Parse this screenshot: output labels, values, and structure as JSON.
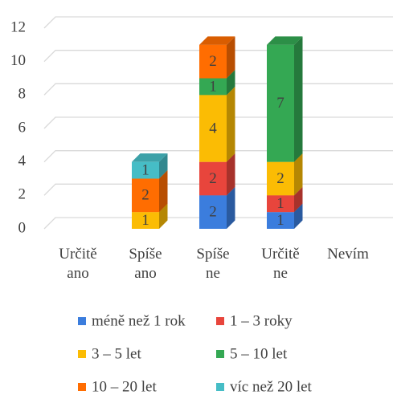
{
  "chart_data": {
    "type": "bar3d_stacked",
    "categories": [
      "Určitě ano",
      "Spíše ano",
      "Spíše ne",
      "Určitě ne",
      "Nevím"
    ],
    "series": [
      {
        "name": "méně než 1 rok",
        "color": "#3b7ddd",
        "values": [
          0,
          0,
          2,
          1,
          0
        ]
      },
      {
        "name": "1 – 3 roky",
        "color": "#e8453c",
        "values": [
          0,
          0,
          2,
          1,
          0
        ]
      },
      {
        "name": "3 – 5 let",
        "color": "#fbbc04",
        "values": [
          0,
          1,
          4,
          2,
          0
        ]
      },
      {
        "name": "5 – 10 let",
        "color": "#34a853",
        "values": [
          0,
          0,
          1,
          7,
          0
        ]
      },
      {
        "name": "10 – 20 let",
        "color": "#ff6d01",
        "values": [
          0,
          2,
          2,
          0,
          0
        ]
      },
      {
        "name": "víc než 20 let",
        "color": "#46bdc6",
        "values": [
          0,
          1,
          0,
          0,
          0
        ]
      }
    ],
    "ylim": [
      0,
      12
    ],
    "yticks": [
      0,
      2,
      4,
      6,
      8,
      10,
      12
    ],
    "grid": true,
    "legend": "bottom"
  }
}
